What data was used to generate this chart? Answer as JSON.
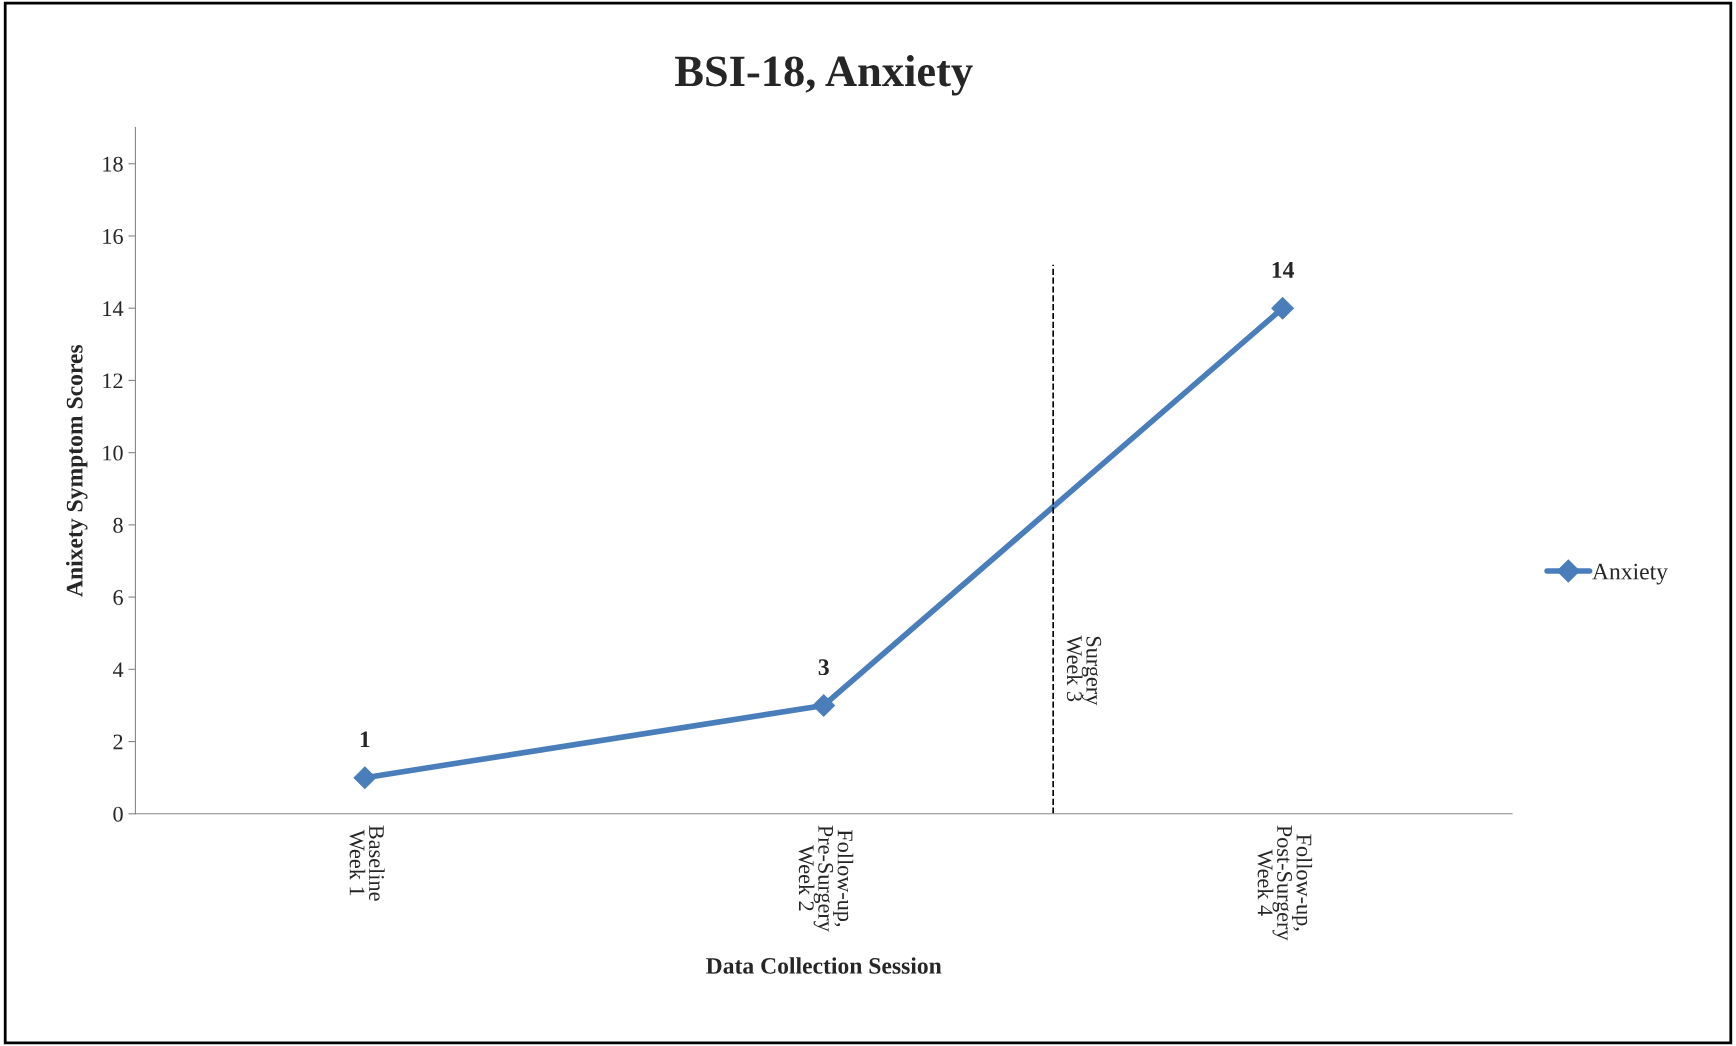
{
  "chart_data": {
    "type": "line",
    "title": "BSI-18, Anxiety",
    "xlabel": "Data Collection Session",
    "ylabel": "Anixety Symptom Scores",
    "categories": [
      "Baseline\nWeek 1",
      "Follow-up,\nPre-Surgery\nWeek 2",
      "Follow-up,\nPost-Surgery\nWeek 4"
    ],
    "series": [
      {
        "name": "Anxiety",
        "color": "#4a7ebb",
        "values": [
          1,
          3,
          14
        ]
      }
    ],
    "ylim": [
      0,
      19
    ],
    "yticks": [
      0,
      2,
      4,
      6,
      8,
      10,
      12,
      14,
      16,
      18
    ],
    "annotations": [
      "Surgery\nWeek 3"
    ],
    "data_labels": true,
    "marker": "diamond",
    "legend": "right",
    "grid": false
  }
}
